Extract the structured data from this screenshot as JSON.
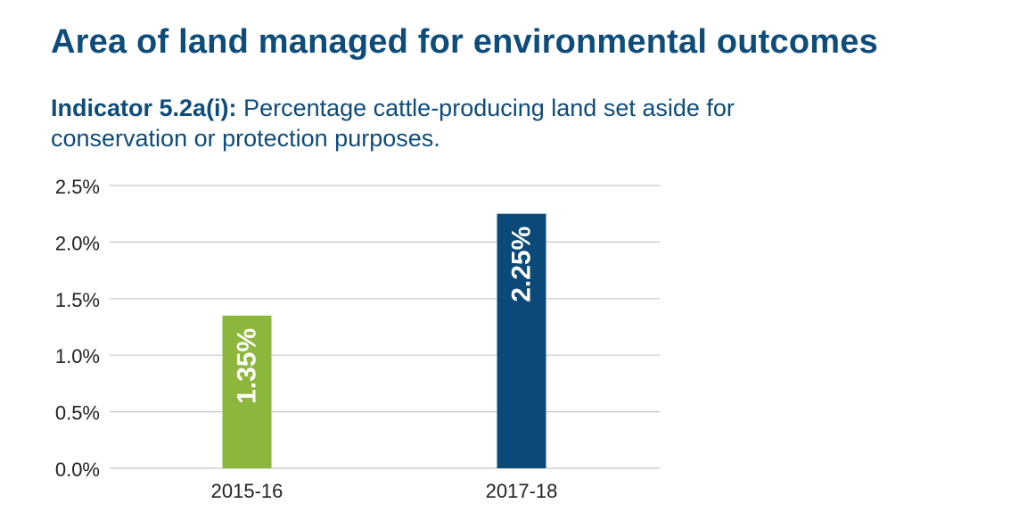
{
  "header": {
    "title": "Area of land managed for environmental outcomes",
    "indicator_label": "Indicator 5.2a(i):",
    "indicator_text": "Percentage cattle-producing land set aside for conservation or protection purposes."
  },
  "colors": {
    "title": "#0e4c7a",
    "gridline": "#c8c8c8",
    "axis_text": "#222222",
    "bar_label": "#ffffff"
  },
  "chart_data": {
    "type": "bar",
    "title": "Area of land managed for environmental outcomes",
    "subtitle": "Indicator 5.2a(i): Percentage cattle-producing land set aside for conservation or protection purposes.",
    "categories": [
      "2015-16",
      "2017-18"
    ],
    "values": [
      1.35,
      2.25
    ],
    "data_labels": [
      "1.35%",
      "2.25%"
    ],
    "bar_colors": [
      "#8db63c",
      "#0b4a78"
    ],
    "xlabel": "",
    "ylabel": "",
    "ylim": [
      0,
      2.5
    ],
    "yticks": [
      0.0,
      0.5,
      1.0,
      1.5,
      2.0,
      2.5
    ],
    "ytick_labels": [
      "0.0%",
      "0.5%",
      "1.0%",
      "1.5%",
      "2.0%",
      "2.5%"
    ],
    "grid": true,
    "legend": "none"
  }
}
